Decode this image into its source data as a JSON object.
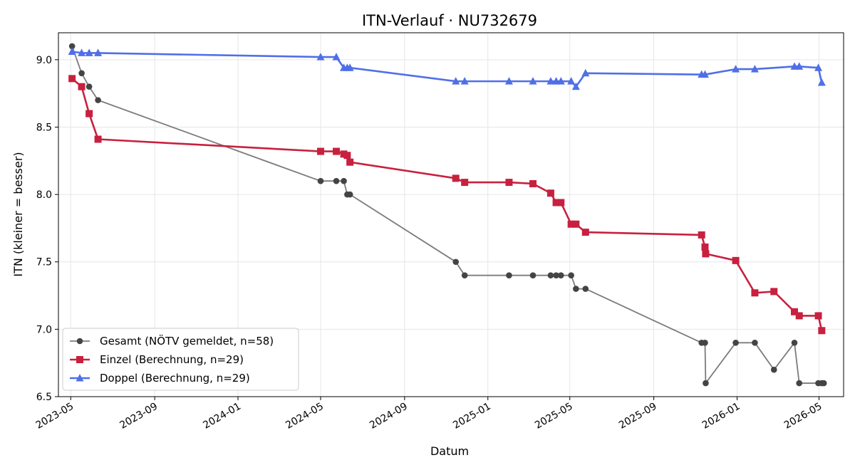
{
  "chart_data": {
    "type": "line",
    "title": "ITN-Verlauf · NU732679",
    "xlabel": "Datum",
    "ylabel": "ITN  (kleiner = besser)",
    "ylim": [
      6.5,
      9.2
    ],
    "yticks": [
      6.5,
      7.0,
      7.5,
      8.0,
      8.5,
      9.0
    ],
    "ytick_labels": [
      "6.5",
      "7.0",
      "7.5",
      "8.0",
      "8.5",
      "9.0"
    ],
    "xlim": [
      "2023-04-13",
      "2026-06-06"
    ],
    "xticks": [
      "2023-05-01",
      "2023-09-01",
      "2024-01-01",
      "2024-05-01",
      "2024-09-01",
      "2025-01-01",
      "2025-05-01",
      "2025-09-01",
      "2026-01-01",
      "2026-05-01"
    ],
    "xtick_labels": [
      "2023-05",
      "2023-09",
      "2024-01",
      "2024-05",
      "2024-09",
      "2025-01",
      "2025-05",
      "2025-09",
      "2026-01",
      "2026-05"
    ],
    "grid": true,
    "legend_position": "lower-left",
    "series": [
      {
        "name": "Gesamt (NÖTV gemeldet, n=58)",
        "color": "#444444",
        "marker": "circle",
        "x": [
          "2023-05-03",
          "2023-05-17",
          "2023-05-28",
          "2023-06-10",
          "2024-05-01",
          "2024-05-24",
          "2024-06-04",
          "2024-06-09",
          "2024-06-13",
          "2024-11-15",
          "2024-11-28",
          "2025-02-01",
          "2025-03-08",
          "2025-04-03",
          "2025-04-11",
          "2025-04-18",
          "2025-05-03",
          "2025-05-10",
          "2025-05-24",
          "2025-11-10",
          "2025-11-15",
          "2025-11-16",
          "2025-12-30",
          "2026-01-27",
          "2026-02-24",
          "2026-03-26",
          "2026-04-02",
          "2026-04-30",
          "2026-05-05",
          "2026-05-08"
        ],
        "y": [
          9.1,
          8.9,
          8.8,
          8.7,
          8.1,
          8.1,
          8.1,
          8.0,
          8.0,
          7.5,
          7.4,
          7.4,
          7.4,
          7.4,
          7.4,
          7.4,
          7.4,
          7.3,
          7.3,
          6.9,
          6.9,
          6.6,
          6.9,
          6.9,
          6.7,
          6.9,
          6.6,
          6.6,
          6.6,
          6.6
        ]
      },
      {
        "name": "Einzel (Berechnung, n=29)",
        "color": "#c8203f",
        "marker": "square",
        "x": [
          "2023-05-03",
          "2023-05-17",
          "2023-05-28",
          "2023-06-10",
          "2024-05-01",
          "2024-05-24",
          "2024-06-04",
          "2024-06-09",
          "2024-06-13",
          "2024-11-15",
          "2024-11-28",
          "2025-02-01",
          "2025-03-08",
          "2025-04-03",
          "2025-04-11",
          "2025-04-18",
          "2025-05-03",
          "2025-05-10",
          "2025-05-24",
          "2025-11-10",
          "2025-11-15",
          "2025-11-16",
          "2025-12-30",
          "2026-01-27",
          "2026-02-24",
          "2026-03-26",
          "2026-04-02",
          "2026-04-30",
          "2026-05-05"
        ],
        "y": [
          8.86,
          8.8,
          8.6,
          8.41,
          8.32,
          8.32,
          8.3,
          8.29,
          8.24,
          8.12,
          8.09,
          8.09,
          8.08,
          8.01,
          7.94,
          7.94,
          7.78,
          7.78,
          7.72,
          7.7,
          7.61,
          7.56,
          7.51,
          7.27,
          7.28,
          7.13,
          7.1,
          7.1,
          6.99
        ]
      },
      {
        "name": "Doppel (Berechnung, n=29)",
        "color": "#4f6fe8",
        "marker": "triangle",
        "x": [
          "2023-05-03",
          "2023-05-17",
          "2023-05-28",
          "2023-06-10",
          "2024-05-01",
          "2024-05-24",
          "2024-06-04",
          "2024-06-09",
          "2024-06-13",
          "2024-11-15",
          "2024-11-28",
          "2025-02-01",
          "2025-03-08",
          "2025-04-03",
          "2025-04-11",
          "2025-04-18",
          "2025-05-03",
          "2025-05-10",
          "2025-05-24",
          "2025-11-10",
          "2025-11-15",
          "2025-12-30",
          "2026-01-27",
          "2026-03-26",
          "2026-04-02",
          "2026-04-30",
          "2026-05-05"
        ],
        "y": [
          9.06,
          9.05,
          9.05,
          9.05,
          9.02,
          9.02,
          8.94,
          8.94,
          8.94,
          8.84,
          8.84,
          8.84,
          8.84,
          8.84,
          8.84,
          8.84,
          8.84,
          8.8,
          8.9,
          8.89,
          8.89,
          8.93,
          8.93,
          8.95,
          8.95,
          8.94,
          8.83
        ]
      }
    ]
  }
}
